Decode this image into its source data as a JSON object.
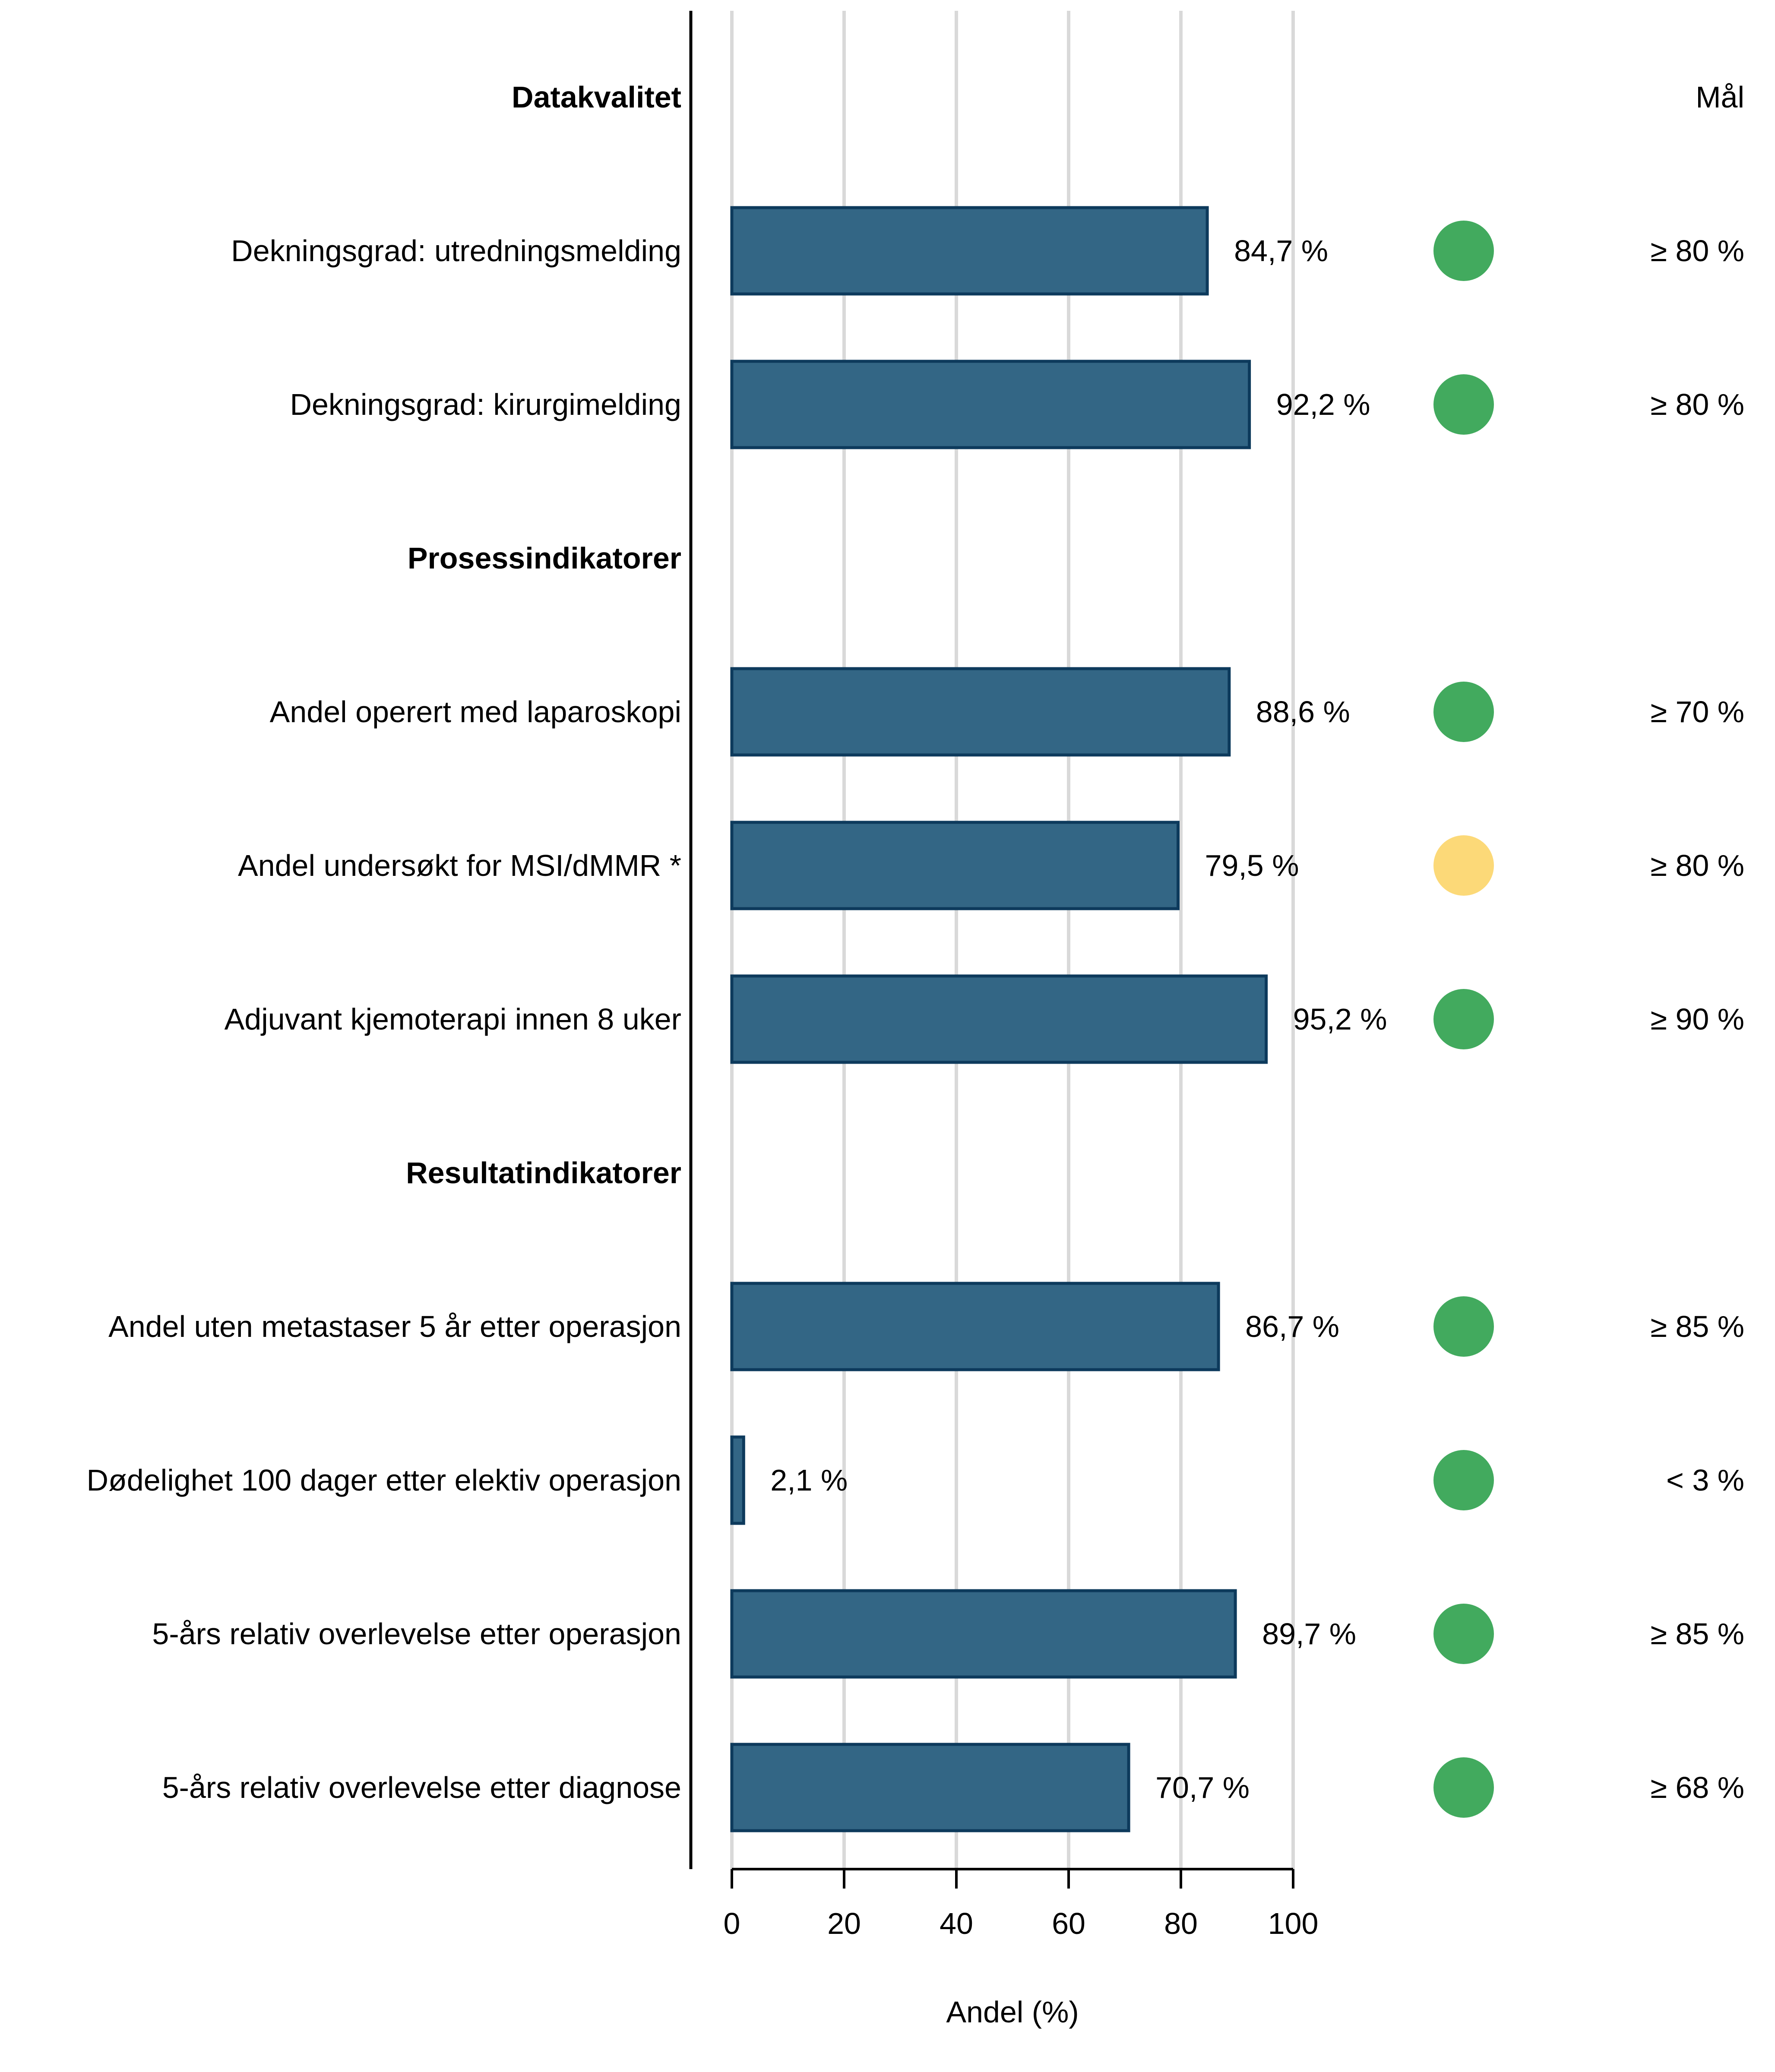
{
  "chart_data": {
    "type": "bar",
    "orientation": "horizontal",
    "xlabel": "Andel (%)",
    "xlim": [
      0,
      100
    ],
    "xticks": [
      0,
      20,
      40,
      60,
      80,
      100
    ],
    "grid": true,
    "goal_header": "Mål",
    "colors": {
      "bar": "#336685",
      "bar_edge": "#0d3a5c",
      "grid": "#d9d9d9",
      "status_green": "#42aa5e",
      "status_yellow": "#fcd978"
    },
    "rows": [
      {
        "kind": "section",
        "label": "Datakvalitet"
      },
      {
        "kind": "bar",
        "label": "Dekningsgrad: utredningsmelding",
        "value": 84.7,
        "value_label": "84,7 %",
        "status": "green",
        "goal": "≥ 80 %"
      },
      {
        "kind": "bar",
        "label": "Dekningsgrad: kirurgimelding",
        "value": 92.2,
        "value_label": "92,2 %",
        "status": "green",
        "goal": "≥ 80 %"
      },
      {
        "kind": "section",
        "label": "Prosessindikatorer"
      },
      {
        "kind": "bar",
        "label": "Andel operert med laparoskopi",
        "value": 88.6,
        "value_label": "88,6 %",
        "status": "green",
        "goal": "≥ 70 %"
      },
      {
        "kind": "bar",
        "label": "Andel undersøkt for MSI/dMMR *",
        "value": 79.5,
        "value_label": "79,5 %",
        "status": "yellow",
        "goal": "≥ 80 %"
      },
      {
        "kind": "bar",
        "label": "Adjuvant kjemoterapi innen 8 uker",
        "value": 95.2,
        "value_label": "95,2 %",
        "status": "green",
        "goal": "≥ 90 %"
      },
      {
        "kind": "section",
        "label": "Resultatindikatorer"
      },
      {
        "kind": "bar",
        "label": "Andel uten metastaser 5 år etter operasjon",
        "value": 86.7,
        "value_label": "86,7 %",
        "status": "green",
        "goal": "≥ 85 %"
      },
      {
        "kind": "bar",
        "label": "Dødelighet 100 dager etter elektiv operasjon",
        "value": 2.1,
        "value_label": "2,1 %",
        "status": "green",
        "goal": "< 3 %"
      },
      {
        "kind": "bar",
        "label": "5-års relativ overlevelse etter operasjon",
        "value": 89.7,
        "value_label": "89,7 %",
        "status": "green",
        "goal": "≥ 85 %"
      },
      {
        "kind": "bar",
        "label": "5-års relativ overlevelse etter diagnose",
        "value": 70.7,
        "value_label": "70,7 %",
        "status": "green",
        "goal": "≥ 68 %"
      }
    ]
  }
}
